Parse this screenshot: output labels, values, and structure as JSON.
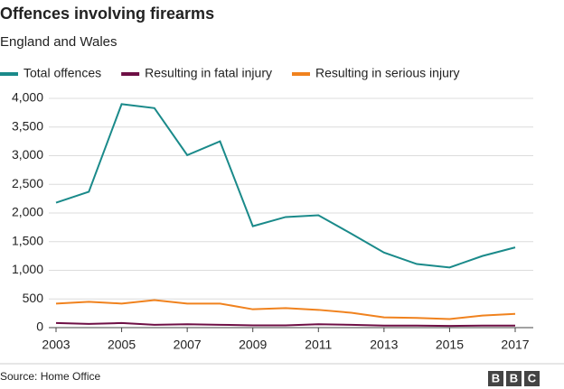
{
  "chart_data": {
    "type": "line",
    "title": "Offences involving firearms",
    "subtitle": "England and Wales",
    "x": [
      2003,
      2004,
      2005,
      2006,
      2007,
      2008,
      2009,
      2010,
      2011,
      2012,
      2013,
      2014,
      2015,
      2016,
      2017
    ],
    "series": [
      {
        "name": "Total offences",
        "color": "#1a8a8a",
        "values": [
          2180,
          2370,
          3900,
          3830,
          3010,
          3250,
          1770,
          1930,
          1960,
          1640,
          1310,
          1110,
          1050,
          1250,
          1400
        ]
      },
      {
        "name": "Resulting in fatal injury",
        "color": "#6e0f45",
        "values": [
          80,
          65,
          80,
          50,
          60,
          50,
          40,
          40,
          60,
          50,
          35,
          35,
          30,
          35,
          35
        ]
      },
      {
        "name": "Resulting in serious injury",
        "color": "#f0821e",
        "values": [
          420,
          450,
          420,
          480,
          420,
          420,
          320,
          340,
          310,
          260,
          180,
          170,
          150,
          210,
          240
        ]
      }
    ],
    "xlim": [
      2003,
      2017
    ],
    "xticks": [
      2003,
      2005,
      2007,
      2009,
      2011,
      2013,
      2015,
      2017
    ],
    "ylim": [
      0,
      4000
    ],
    "yticks": [
      0,
      500,
      {
        "value": 1000,
        "label": "1,000"
      },
      {
        "value": 1500,
        "label": "1,500"
      },
      {
        "value": 2000,
        "label": "2,000"
      },
      {
        "value": 2500,
        "label": "2,500"
      },
      {
        "value": 3000,
        "label": "3,000"
      },
      {
        "value": 3500,
        "label": "3,500"
      },
      {
        "value": 4000,
        "label": "4,000"
      }
    ],
    "grid": true,
    "source": "Source: Home Office",
    "logo": [
      "B",
      "B",
      "C"
    ]
  }
}
